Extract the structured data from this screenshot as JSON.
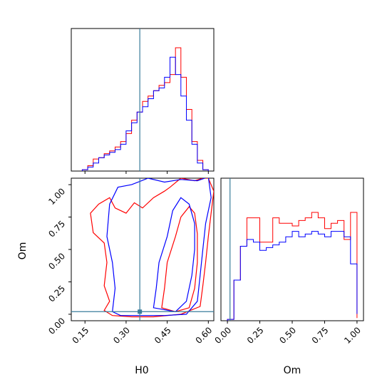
{
  "chart_data": {
    "type": "corner",
    "parameters": [
      "H0",
      "Om"
    ],
    "xlabel_bottom_left": "H0",
    "xlabel_bottom_right": "Om",
    "ylabel_left": "Om",
    "truth": {
      "H0": 0.35,
      "Om": 0.02
    },
    "truth_color": "#3a7d9c",
    "series": [
      {
        "color": "#ff0000"
      },
      {
        "color": "#0000ff"
      }
    ],
    "h0_axis": {
      "range": [
        0.1,
        0.62
      ],
      "ticks": [
        0.15,
        0.3,
        0.45,
        0.6
      ],
      "tick_labels": [
        "0.15",
        "0.30",
        "0.45",
        "0.60"
      ]
    },
    "om_axis": {
      "range": [
        -0.05,
        1.05
      ],
      "ticks": [
        0.0,
        0.25,
        0.5,
        0.75,
        1.0
      ],
      "tick_labels": [
        "0.00",
        "0.25",
        "0.50",
        "0.75",
        "1.00"
      ]
    },
    "h0_hist": {
      "bin_edges": [
        0.14,
        0.16,
        0.18,
        0.2,
        0.22,
        0.24,
        0.26,
        0.28,
        0.3,
        0.32,
        0.34,
        0.36,
        0.38,
        0.4,
        0.42,
        0.44,
        0.46,
        0.48,
        0.5,
        0.52,
        0.54,
        0.56,
        0.58,
        0.6
      ],
      "red": [
        0.01,
        0.04,
        0.09,
        0.1,
        0.13,
        0.15,
        0.18,
        0.22,
        0.28,
        0.38,
        0.44,
        0.52,
        0.56,
        0.6,
        0.64,
        0.66,
        0.72,
        0.92,
        0.7,
        0.46,
        0.22,
        0.08,
        0.01
      ],
      "blue": [
        0.01,
        0.03,
        0.06,
        0.1,
        0.12,
        0.14,
        0.16,
        0.2,
        0.3,
        0.36,
        0.44,
        0.48,
        0.54,
        0.6,
        0.62,
        0.7,
        0.85,
        0.72,
        0.56,
        0.38,
        0.2,
        0.06,
        0.01
      ]
    },
    "om_hist": {
      "bin_edges": [
        0.0,
        0.05,
        0.1,
        0.15,
        0.2,
        0.25,
        0.3,
        0.35,
        0.4,
        0.45,
        0.5,
        0.55,
        0.6,
        0.65,
        0.7,
        0.75,
        0.8,
        0.85,
        0.9,
        0.95,
        1.0
      ],
      "red": [
        0.01,
        0.3,
        0.55,
        0.76,
        0.76,
        0.58,
        0.58,
        0.76,
        0.72,
        0.72,
        0.7,
        0.74,
        0.76,
        0.8,
        0.76,
        0.68,
        0.72,
        0.74,
        0.6,
        0.8,
        0.02
      ],
      "blue": [
        0.01,
        0.3,
        0.55,
        0.6,
        0.58,
        0.52,
        0.54,
        0.56,
        0.58,
        0.62,
        0.66,
        0.62,
        0.64,
        0.66,
        0.64,
        0.62,
        0.66,
        0.66,
        0.62,
        0.42,
        0.05
      ]
    },
    "contours_2d": {
      "red": [
        [
          [
            0.22,
            0.03
          ],
          [
            0.24,
            0.1
          ],
          [
            0.22,
            0.22
          ],
          [
            0.23,
            0.4
          ],
          [
            0.22,
            0.55
          ],
          [
            0.18,
            0.63
          ],
          [
            0.17,
            0.78
          ],
          [
            0.2,
            0.85
          ],
          [
            0.24,
            0.9
          ],
          [
            0.26,
            0.82
          ],
          [
            0.3,
            0.78
          ],
          [
            0.33,
            0.86
          ],
          [
            0.36,
            0.82
          ],
          [
            0.4,
            0.9
          ],
          [
            0.44,
            0.95
          ],
          [
            0.46,
            0.98
          ],
          [
            0.5,
            1.05
          ],
          [
            0.55,
            1.03
          ],
          [
            0.58,
            1.05
          ],
          [
            0.6,
            1.05
          ],
          [
            0.62,
            0.95
          ],
          [
            0.61,
            0.78
          ],
          [
            0.6,
            0.6
          ],
          [
            0.59,
            0.4
          ],
          [
            0.58,
            0.22
          ],
          [
            0.57,
            0.06
          ],
          [
            0.5,
            0.0
          ],
          [
            0.4,
            -0.02
          ],
          [
            0.32,
            -0.02
          ],
          [
            0.25,
            -0.01
          ],
          [
            0.22,
            0.03
          ]
        ],
        [
          [
            0.43,
            0.05
          ],
          [
            0.44,
            0.2
          ],
          [
            0.45,
            0.4
          ],
          [
            0.48,
            0.6
          ],
          [
            0.5,
            0.75
          ],
          [
            0.53,
            0.83
          ],
          [
            0.55,
            0.78
          ],
          [
            0.56,
            0.62
          ],
          [
            0.56,
            0.4
          ],
          [
            0.55,
            0.2
          ],
          [
            0.53,
            0.05
          ],
          [
            0.48,
            0.02
          ],
          [
            0.43,
            0.05
          ]
        ]
      ],
      "blue": [
        [
          [
            0.25,
            0.02
          ],
          [
            0.26,
            0.2
          ],
          [
            0.25,
            0.4
          ],
          [
            0.23,
            0.6
          ],
          [
            0.24,
            0.85
          ],
          [
            0.27,
            0.98
          ],
          [
            0.32,
            1.0
          ],
          [
            0.38,
            1.05
          ],
          [
            0.44,
            1.02
          ],
          [
            0.5,
            1.04
          ],
          [
            0.56,
            1.03
          ],
          [
            0.6,
            1.06
          ],
          [
            0.61,
            0.9
          ],
          [
            0.59,
            0.7
          ],
          [
            0.58,
            0.5
          ],
          [
            0.57,
            0.3
          ],
          [
            0.56,
            0.1
          ],
          [
            0.52,
            0.0
          ],
          [
            0.44,
            -0.01
          ],
          [
            0.35,
            -0.01
          ],
          [
            0.28,
            -0.01
          ],
          [
            0.25,
            0.02
          ]
        ],
        [
          [
            0.4,
            0.05
          ],
          [
            0.41,
            0.2
          ],
          [
            0.42,
            0.4
          ],
          [
            0.45,
            0.6
          ],
          [
            0.47,
            0.8
          ],
          [
            0.5,
            0.9
          ],
          [
            0.53,
            0.85
          ],
          [
            0.55,
            0.7
          ],
          [
            0.55,
            0.5
          ],
          [
            0.54,
            0.3
          ],
          [
            0.52,
            0.1
          ],
          [
            0.48,
            0.02
          ],
          [
            0.4,
            0.05
          ]
        ]
      ]
    }
  }
}
